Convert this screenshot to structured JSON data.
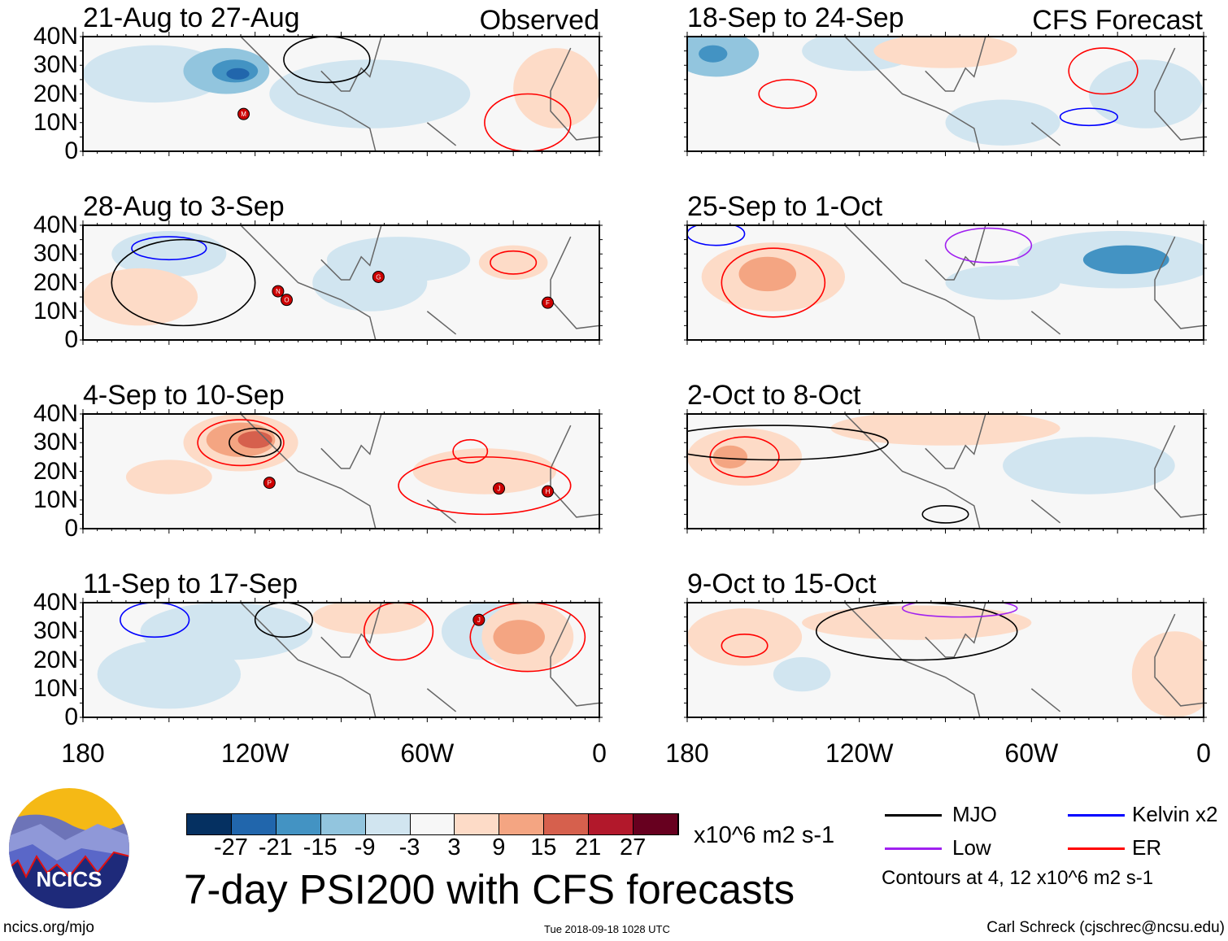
{
  "title": "7-day PSI200 with CFS forecasts",
  "units": "x10^6 m2 s-1",
  "column_labels": {
    "left": "Observed",
    "right": "CFS Forecast"
  },
  "lat_ticks": [
    "40N",
    "30N",
    "20N",
    "10N",
    "0"
  ],
  "lon_ticks": [
    "180",
    "120W",
    "60W",
    "0"
  ],
  "panels": [
    {
      "title": "21-Aug to 27-Aug",
      "storms": [
        {
          "id": "M",
          "lon": -124,
          "lat": 13
        }
      ]
    },
    {
      "title": "28-Aug to 3-Sep",
      "storms": [
        {
          "id": "N",
          "lon": -112,
          "lat": 17
        },
        {
          "id": "O",
          "lon": -109,
          "lat": 14
        },
        {
          "id": "G",
          "lon": -77,
          "lat": 22
        },
        {
          "id": "F",
          "lon": -18,
          "lat": 13
        }
      ]
    },
    {
      "title": "4-Sep to 10-Sep",
      "storms": [
        {
          "id": "P",
          "lon": -115,
          "lat": 16
        },
        {
          "id": "J",
          "lon": -35,
          "lat": 14
        },
        {
          "id": "H",
          "lon": -18,
          "lat": 13
        }
      ]
    },
    {
      "title": "11-Sep to 17-Sep",
      "storms": [
        {
          "id": "J",
          "lon": -42,
          "lat": 34
        }
      ]
    },
    {
      "title": "18-Sep to 24-Sep",
      "storms": []
    },
    {
      "title": "25-Sep to 1-Oct",
      "storms": []
    },
    {
      "title": "2-Oct to 8-Oct",
      "storms": []
    },
    {
      "title": "9-Oct to 15-Oct",
      "storms": []
    }
  ],
  "colorbar": {
    "colors": [
      "#053061",
      "#2166ac",
      "#4393c3",
      "#92c5de",
      "#d1e5f0",
      "#f7f7f7",
      "#fddbc7",
      "#f4a582",
      "#d6604d",
      "#b2182b",
      "#67001f"
    ],
    "labels": [
      "-27",
      "-21",
      "-15",
      "-9",
      "-3",
      "3",
      "9",
      "15",
      "21",
      "27"
    ]
  },
  "legend": {
    "items": [
      {
        "label": "MJO",
        "color": "#000000"
      },
      {
        "label": "Kelvin x2",
        "color": "#0000ff"
      },
      {
        "label": "Low",
        "color": "#a020f0"
      },
      {
        "label": "ER",
        "color": "#ff0000"
      }
    ],
    "contours_note": "Contours at 4, 12 x10^6 m2 s-1"
  },
  "logo_text": "NCICS",
  "footer": {
    "url": "ncics.org/mjo",
    "timestamp": "Tue 2018-09-18 1028 UTC",
    "credit": "Carl Schreck (cjschrec@ncsu.edu)"
  }
}
